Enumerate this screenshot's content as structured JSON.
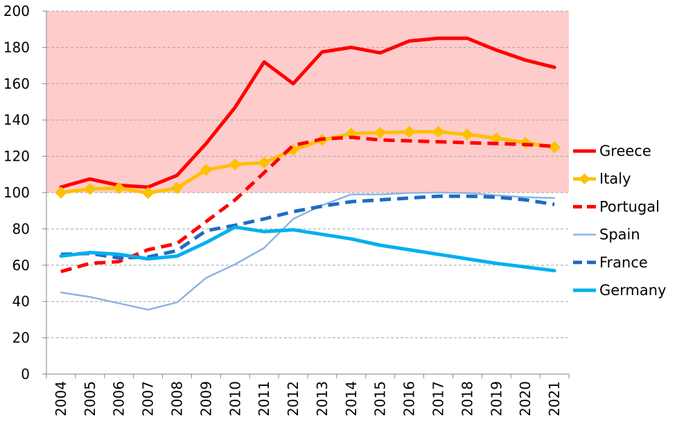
{
  "chart_data": {
    "type": "line",
    "title": "",
    "xlabel": "",
    "ylabel": "",
    "ylim": [
      0,
      200
    ],
    "y_ticks": [
      "0",
      "20",
      "40",
      "60",
      "80",
      "100",
      "120",
      "140",
      "160",
      "180",
      "200"
    ],
    "categories": [
      "2004",
      "2005",
      "2006",
      "2007",
      "2008",
      "2009",
      "2010",
      "2011",
      "2012",
      "2013",
      "2014",
      "2015",
      "2016",
      "2017",
      "2018",
      "2019",
      "2020",
      "2021"
    ],
    "highlight_band": {
      "from": 100,
      "to": 200,
      "color": "#ffcccc"
    },
    "grid": true,
    "legend_position": "right",
    "series": [
      {
        "name": "Greece",
        "color": "#ff0000",
        "style": "solid",
        "marker": "none",
        "values": [
          103,
          107.5,
          104,
          103,
          109.5,
          127,
          147,
          172,
          160,
          177.5,
          180,
          177,
          183.5,
          185,
          185,
          178.5,
          173,
          169
        ]
      },
      {
        "name": "Italy",
        "color": "#ffc000",
        "style": "solid",
        "marker": "diamond",
        "values": [
          100,
          102,
          102.5,
          99.8,
          102.5,
          112.5,
          115.5,
          116.5,
          123.5,
          129,
          132.5,
          133,
          133.5,
          133.5,
          132,
          130,
          127.5,
          125
        ]
      },
      {
        "name": "Portugal",
        "color": "#ff0000",
        "style": "dashed",
        "marker": "none",
        "values": [
          56.5,
          61,
          62,
          68.5,
          72,
          84,
          96,
          111,
          126,
          129.5,
          130.5,
          129,
          128.5,
          128,
          127.5,
          127,
          126.5,
          125.5
        ]
      },
      {
        "name": "Spain",
        "color": "#8eb4e3",
        "style": "solid-thin",
        "marker": "none",
        "values": [
          45,
          42.5,
          39,
          35.5,
          39.5,
          53,
          60.5,
          69.5,
          85.5,
          93,
          99,
          99,
          99.8,
          100,
          99.8,
          98.5,
          97.5,
          97
        ]
      },
      {
        "name": "France",
        "color": "#1f6bc1",
        "style": "dashed",
        "marker": "none",
        "values": [
          66,
          66.5,
          64,
          64.5,
          68,
          79,
          82,
          85.5,
          89.5,
          92.5,
          95,
          96,
          97,
          98,
          98,
          97.5,
          96,
          93.5
        ]
      },
      {
        "name": "Germany",
        "color": "#00b0f0",
        "style": "solid",
        "marker": "none",
        "values": [
          65,
          67,
          66,
          63.5,
          65,
          72.5,
          81,
          78.5,
          79.5,
          77,
          74.5,
          71,
          68.5,
          66,
          63.5,
          61,
          59,
          57
        ]
      }
    ]
  }
}
